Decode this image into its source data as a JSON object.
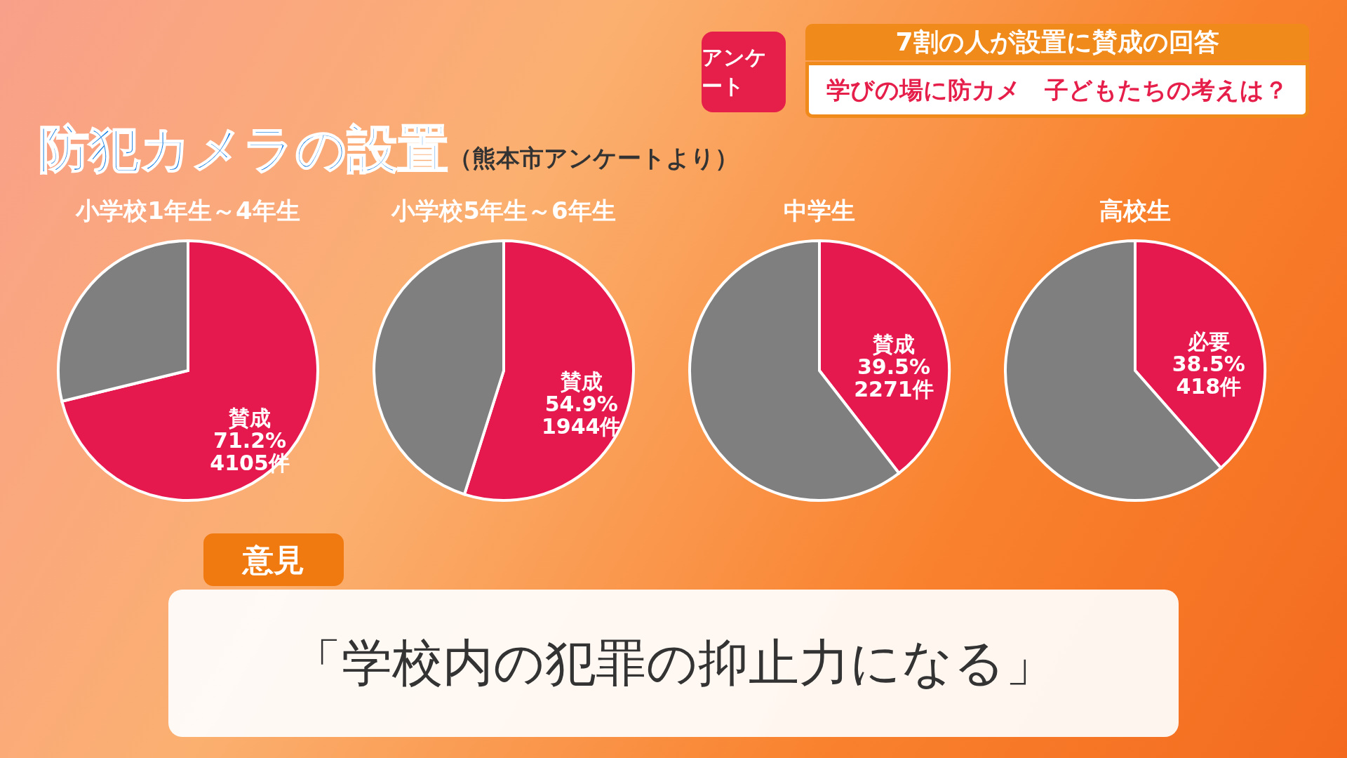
{
  "chart_data": [
    {
      "type": "other",
      "title": "防犯カメラの設置",
      "subtitle": "（熊本市アンケートより）",
      "annotations": [
        "アンケート",
        "7割の人が設置に賛成の回答",
        "学びの場に防カメ　子どもたちの考えは？"
      ]
    },
    {
      "type": "pie",
      "title": "小学校1年生～4年生",
      "categories": [
        "賛成",
        null
      ],
      "values": [
        71.2,
        28.8
      ],
      "colors": [
        "#e6194f",
        "#7f7f7f"
      ],
      "value_labels": [
        "71.2%",
        null
      ],
      "annotations": [
        "4105件"
      ]
    },
    {
      "type": "pie",
      "title": "小学校5年生～6年生",
      "categories": [
        "賛成",
        null
      ],
      "values": [
        54.9,
        45.1
      ],
      "colors": [
        "#e6194f",
        "#7f7f7f"
      ],
      "value_labels": [
        "54.9%",
        null
      ],
      "annotations": [
        "1944件"
      ]
    },
    {
      "type": "pie",
      "title": "中学生",
      "categories": [
        "賛成",
        null
      ],
      "values": [
        39.5,
        60.5
      ],
      "colors": [
        "#e6194f",
        "#7f7f7f"
      ],
      "value_labels": [
        "39.5%",
        null
      ],
      "annotations": [
        "2271件"
      ]
    },
    {
      "type": "pie",
      "title": "高校生",
      "categories": [
        "必要",
        null
      ],
      "values": [
        38.5,
        61.5
      ],
      "colors": [
        "#e6194f",
        "#7f7f7f"
      ],
      "value_labels": [
        "38.5%",
        null
      ],
      "annotations": [
        "418件"
      ]
    },
    {
      "type": "other",
      "annotations": [
        "意見",
        "「学校内の犯罪の抑止力になる」"
      ]
    }
  ]
}
